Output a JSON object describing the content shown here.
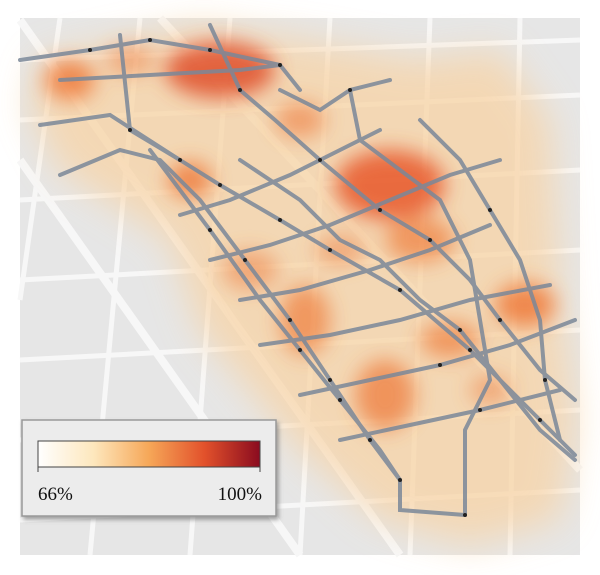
{
  "legend": {
    "ticks": [
      {
        "value": 66,
        "label": "66%"
      },
      {
        "value": 100,
        "label": "100%"
      }
    ],
    "colors": [
      "#ffffff",
      "#fde7bd",
      "#f6a758",
      "#e2512b",
      "#8a0b1f"
    ]
  }
}
